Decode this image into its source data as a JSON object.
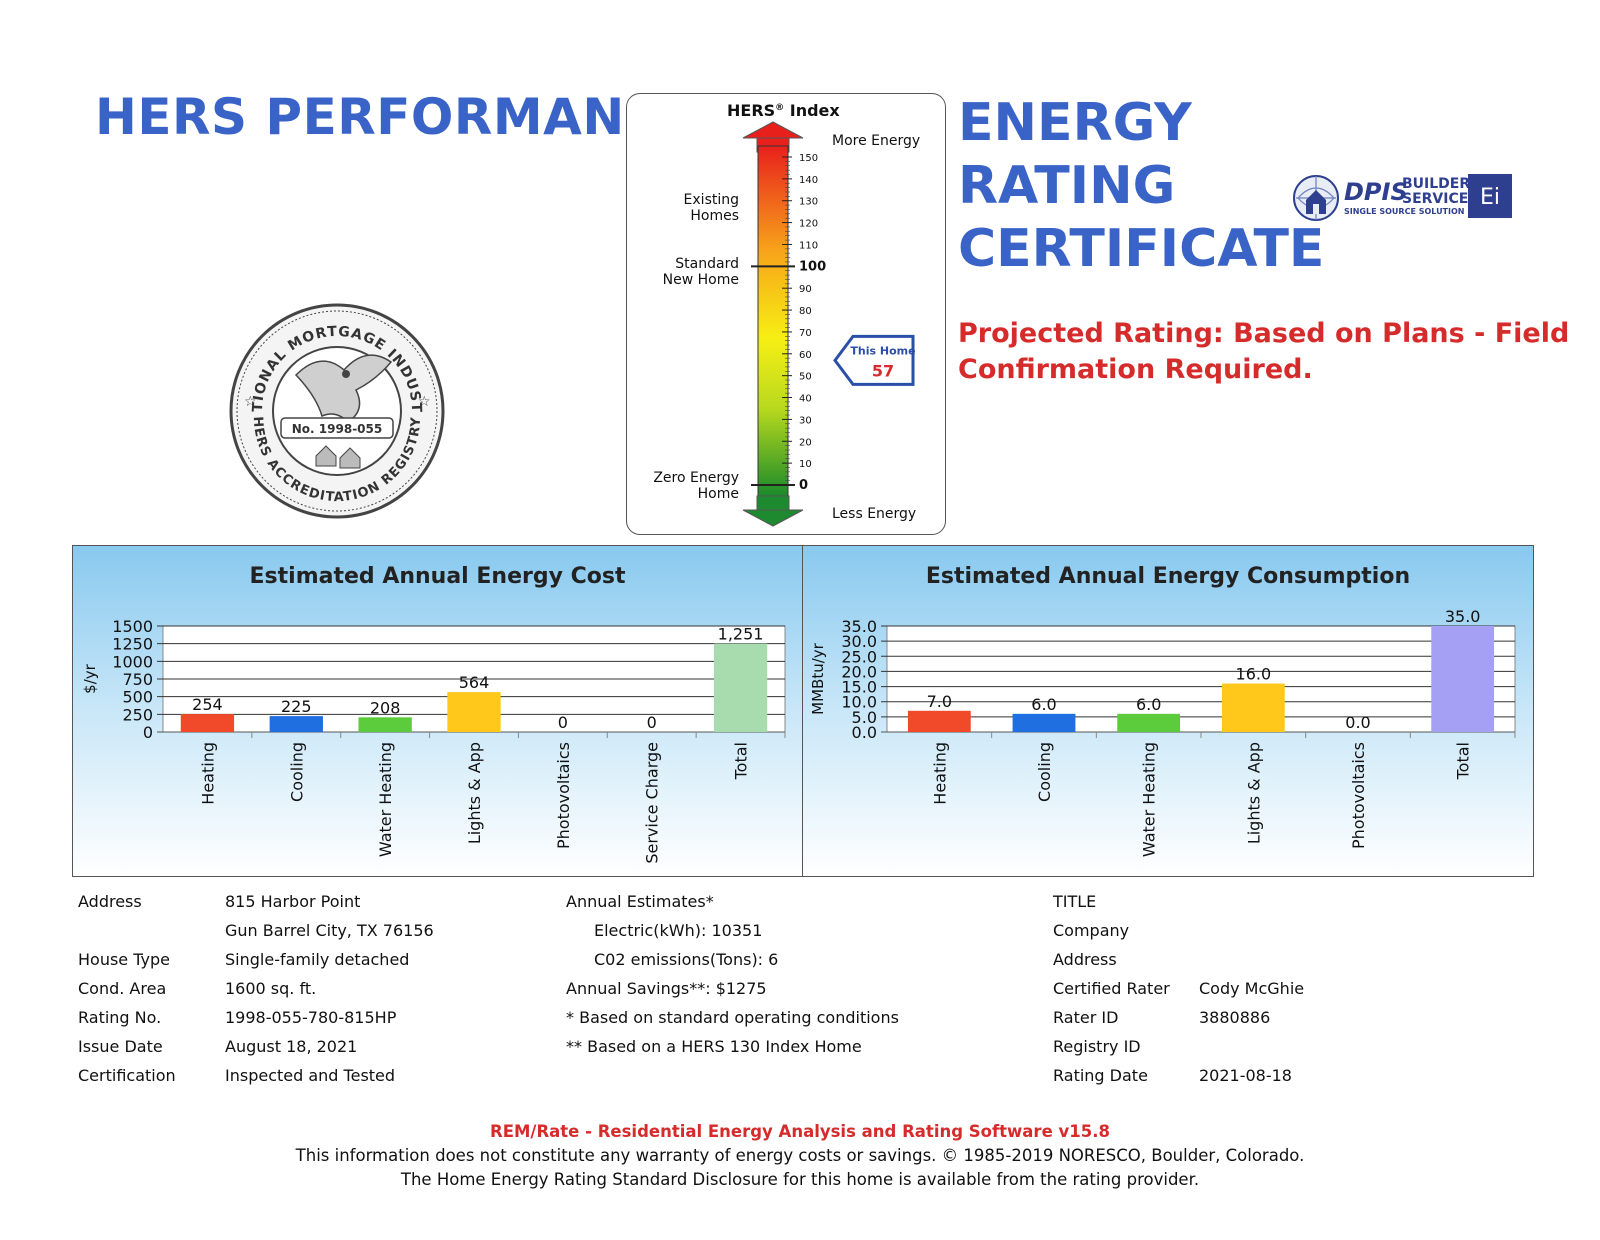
{
  "header": {
    "left_title": "HERS PERFORMANCE",
    "right_title_lines": [
      "ENERGY",
      "RATING",
      "CERTIFICATE"
    ],
    "projected_note": "Projected Rating: Based on Plans - Field Confirmation Required."
  },
  "logo": {
    "line1": "DPIS",
    "line2": "BUILDER",
    "line3": "SERVICES",
    "tagline": "SINGLE SOURCE SOLUTION",
    "badge": "Ei"
  },
  "seal": {
    "top_text": "NATIONAL MORTGAGE INDUSTRY",
    "bottom_text": "HERS ACCREDITATION REGISTRY",
    "number": "No. 1998-055"
  },
  "hers_index": {
    "title": "HERS",
    "title_suffix": " Index",
    "reg_mark": "®",
    "more_energy": "More Energy",
    "less_energy": "Less Energy",
    "label_existing": [
      "Existing",
      "Homes"
    ],
    "label_standard": [
      "Standard",
      "New Home"
    ],
    "label_zero": [
      "Zero Energy",
      "Home"
    ],
    "ticks": [
      "150",
      "140",
      "130",
      "120",
      "110",
      "100",
      "90",
      "80",
      "70",
      "60",
      "50",
      "40",
      "30",
      "20",
      "10",
      "0"
    ],
    "bold_ticks": [
      "100",
      "0"
    ],
    "this_home_label": "This Home",
    "this_home_value": 57,
    "scale_max": 150,
    "colors": {
      "top": "#e8201c",
      "mid": "#f7ef14",
      "bottom": "#1a8a2a",
      "arrow_up": "#e8201c",
      "arrow_down": "#1e8a30",
      "marker": "#2a4fa8"
    }
  },
  "chart_data": [
    {
      "type": "bar",
      "title": "Estimated Annual Energy Cost",
      "ylabel": "$/yr",
      "xlabel": "",
      "ylim": [
        0,
        1500
      ],
      "yticks": [
        "0",
        "250",
        "500",
        "750",
        "1000",
        "1250",
        "1500"
      ],
      "categories": [
        "Heating",
        "Cooling",
        "Water Heating",
        "Lights & App",
        "Photovoltaics",
        "Service Charge",
        "Total"
      ],
      "values": [
        254,
        225,
        208,
        564,
        0,
        0,
        1251
      ],
      "value_labels": [
        "254",
        "225",
        "208",
        "564",
        "0",
        "0",
        "1,251"
      ],
      "colors": [
        "#f04a2a",
        "#1f6fe0",
        "#5dcc3c",
        "#ffc81a",
        "#cccccc",
        "#cccccc",
        "#a8dcae"
      ],
      "grid": true
    },
    {
      "type": "bar",
      "title": "Estimated Annual Energy Consumption",
      "ylabel": "MMBtu/yr",
      "xlabel": "",
      "ylim": [
        0,
        35
      ],
      "yticks": [
        "0.0",
        "5.0",
        "10.0",
        "15.0",
        "20.0",
        "25.0",
        "30.0",
        "35.0"
      ],
      "categories": [
        "Heating",
        "Cooling",
        "Water Heating",
        "Lights & App",
        "Photovoltaics",
        "Total"
      ],
      "values": [
        7.0,
        6.0,
        6.0,
        16.0,
        0.0,
        35.0
      ],
      "value_labels": [
        "7.0",
        "6.0",
        "6.0",
        "16.0",
        "0.0",
        "35.0"
      ],
      "colors": [
        "#f04a2a",
        "#1f6fe0",
        "#5dcc3c",
        "#ffc81a",
        "#cccccc",
        "#a6a0f4"
      ],
      "grid": true
    }
  ],
  "property": {
    "address_label": "Address",
    "address_line1": "815 Harbor Point",
    "address_line2": "Gun Barrel City, TX 76156",
    "house_type_label": "House Type",
    "house_type": "Single-family detached",
    "cond_area_label": "Cond. Area",
    "cond_area": "1600 sq. ft.",
    "rating_no_label": "Rating No.",
    "rating_no": "1998-055-780-815HP",
    "issue_date_label": "Issue Date",
    "issue_date": "August 18, 2021",
    "certification_label": "Certification",
    "certification": "Inspected and Tested"
  },
  "estimates": {
    "heading": "Annual Estimates*",
    "electric": "Electric(kWh):  10351",
    "co2": "C02 emissions(Tons): 6",
    "savings": "Annual Savings**:  $1275",
    "note1": "* Based on standard operating conditions",
    "note2": "** Based on a HERS 130 Index Home"
  },
  "rater": {
    "title": "TITLE",
    "company": "Company",
    "address": "Address",
    "certified_rater_label": "Certified Rater",
    "certified_rater": "Cody McGhie",
    "rater_id_label": "Rater ID",
    "rater_id": "3880886",
    "registry_id_label": "Registry ID",
    "rating_date_label": "Rating Date",
    "rating_date": "2021-08-18"
  },
  "footer": {
    "software": "REM/Rate - Residential Energy Analysis and Rating Software v15.8",
    "disclaimer": "This information does not constitute any warranty of energy costs or savings. © 1985-2019 NORESCO, Boulder, Colorado.",
    "disclosure": "The Home Energy Rating Standard Disclosure for this home is available from the rating provider."
  }
}
